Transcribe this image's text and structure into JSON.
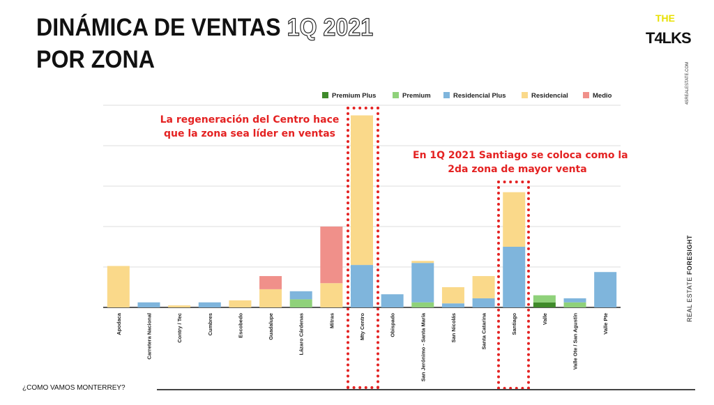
{
  "header": {
    "title_line1": "DINÁMICA DE VENTAS",
    "title_highlight": "1Q 2021",
    "title_line2": "POR ZONA"
  },
  "logo": {
    "top": "THE",
    "main": "T4LKS",
    "side_text": "4SREALESTATE.COM"
  },
  "side_label": {
    "light": "REAL ESTATE",
    "bold": "FORESIGHT"
  },
  "footer": {
    "text": "¿COMO VAMOS MONTERREY?"
  },
  "annotations": [
    {
      "text_line1": "La regeneración del Centro hace",
      "text_line2": "que la zona sea líder en ventas"
    },
    {
      "text_line1": "En 1Q 2021 Santiago se coloca como la",
      "text_line2": "2da zona de mayor venta"
    }
  ],
  "colors": {
    "Premium Plus": "#3f8a2a",
    "Premium": "#8fd17a",
    "Residencial Plus": "#7fb5dc",
    "Residencial": "#fad98a",
    "Medio": "#f0908a",
    "highlight": "#e42222"
  },
  "chart_data": {
    "type": "bar",
    "stacked": true,
    "legend_position": "top-right",
    "grid": true,
    "ylim": [
      0,
      100
    ],
    "categories": [
      "Apodaca",
      "Carretera Nacional",
      "Contry / Tec",
      "Cumbres",
      "Escobedo",
      "Guadalupe",
      "Lázaro Cárdenas",
      "Mitras",
      "Mty Centro",
      "Obispado",
      "San Jerónimo - Santa María",
      "San Nicolás",
      "Santa Catarina",
      "Santiago",
      "Valle",
      "Valle Ote / San Agustín",
      "Valle Pte"
    ],
    "series": [
      {
        "name": "Premium Plus",
        "values": [
          0,
          0,
          0,
          0,
          0,
          0,
          0,
          0,
          0,
          0,
          0,
          0,
          0,
          0,
          2.5,
          0,
          0
        ]
      },
      {
        "name": "Premium",
        "values": [
          0,
          0,
          0,
          0,
          0,
          0,
          4,
          0,
          0,
          0,
          2.5,
          0,
          0,
          0,
          3.5,
          2.5,
          0
        ]
      },
      {
        "name": "Residencial Plus",
        "values": [
          0,
          2.5,
          0,
          2.5,
          0,
          0,
          4,
          0,
          21,
          6.5,
          19.5,
          2,
          4.5,
          30,
          0,
          2,
          17.5
        ]
      },
      {
        "name": "Residencial",
        "values": [
          20.5,
          0,
          1,
          0,
          3.5,
          9,
          0,
          12,
          74,
          0,
          1,
          8,
          11,
          27,
          0,
          0,
          0
        ]
      },
      {
        "name": "Medio",
        "values": [
          0,
          0,
          0,
          0,
          0,
          6.5,
          0,
          28,
          0,
          0,
          0,
          0,
          0,
          0,
          0,
          0,
          0
        ]
      }
    ]
  }
}
